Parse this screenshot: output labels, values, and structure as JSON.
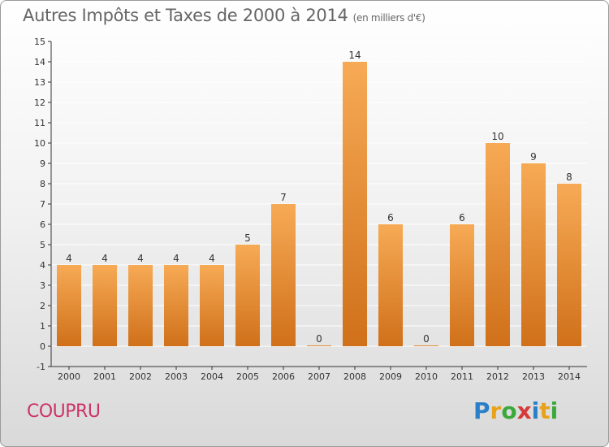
{
  "header": {
    "title": "Autres Impôts et Taxes de 2000 à 2014",
    "unit": "(en milliers d'€)"
  },
  "footer": {
    "commune": "COUPRU",
    "brand_letters": [
      "P",
      "r",
      "o",
      "x",
      "i",
      "t",
      "i"
    ],
    "brand_colors": [
      "#2a7fc8",
      "#e8a21a",
      "#3aa83a",
      "#d63a3a",
      "#2a7fc8",
      "#e8a21a",
      "#3aa83a"
    ]
  },
  "colors": {
    "bar_light": "#f7aa55",
    "bar_dark": "#d0701a",
    "axis": "#333333",
    "grid": "#ffffff",
    "label": "#333333"
  },
  "chart_data": {
    "type": "bar",
    "title": "Autres Impôts et Taxes de 2000 à 2014",
    "subtitle": "(en milliers d'€)",
    "categories": [
      "2000",
      "2001",
      "2002",
      "2003",
      "2004",
      "2005",
      "2006",
      "2007",
      "2008",
      "2009",
      "2010",
      "2011",
      "2012",
      "2013",
      "2014"
    ],
    "values": [
      4,
      4,
      4,
      4,
      4,
      5,
      7,
      0,
      14,
      6,
      0,
      6,
      10,
      9,
      8
    ],
    "ylim": [
      -1,
      15
    ],
    "yticks": [
      "-1",
      "0",
      "1",
      "2",
      "3",
      "4",
      "5",
      "6",
      "7",
      "8",
      "9",
      "10",
      "11",
      "12",
      "13",
      "14",
      "15"
    ],
    "grid": true,
    "xlabel": "",
    "ylabel": ""
  }
}
